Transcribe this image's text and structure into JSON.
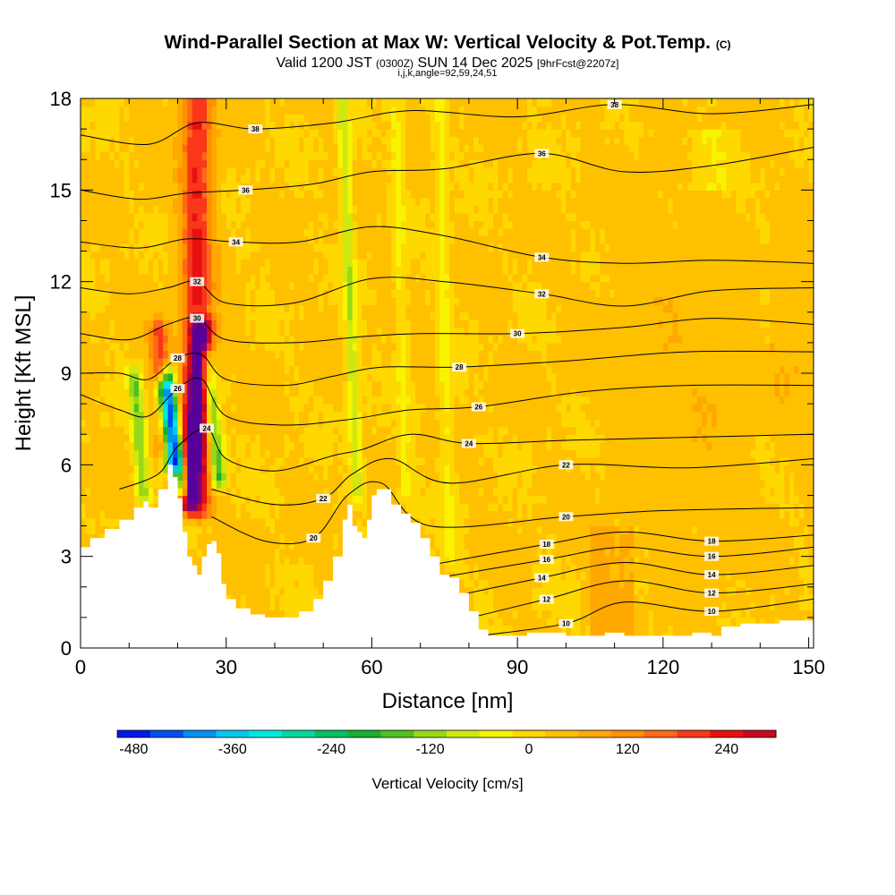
{
  "chart_data": {
    "type": "heatmap",
    "title": "Wind-Parallel Section at Max W: Vertical Velocity & Pot.Temp.",
    "title_suffix": "(C)",
    "subtitle_prefix": "Valid 1200 JST",
    "subtitle_utc": "(0300Z)",
    "subtitle_date": "SUN 14 Dec 2025",
    "subtitle_fcst": "[9hrFcst@2207z]",
    "subtitle2": "i,j,k,angle=92,59,24,51",
    "xlabel": "Distance [nm]",
    "ylabel": "Height [Kft MSL]",
    "xlim": [
      0,
      151
    ],
    "ylim": [
      0,
      18
    ],
    "xticks": [
      0,
      30,
      60,
      90,
      120,
      150
    ],
    "yticks": [
      0,
      3,
      6,
      9,
      12,
      15,
      18
    ],
    "colorbar": {
      "label": "Vertical Velocity [cm/s]",
      "min": -500,
      "max": 300,
      "step": 40,
      "ticks": [
        -480,
        -360,
        -240,
        -120,
        0,
        120,
        240
      ],
      "colors": [
        "#0018e8",
        "#0050f0",
        "#0090f0",
        "#00c8f0",
        "#00e8e0",
        "#00d8a0",
        "#00c060",
        "#18b030",
        "#50c020",
        "#98d818",
        "#d0e810",
        "#f8f400",
        "#ffd800",
        "#ffc000",
        "#ffa800",
        "#ff9000",
        "#ff6818",
        "#f83818",
        "#e81010",
        "#c80820",
        "#a00040",
        "#80007a",
        "#58009a"
      ]
    },
    "terrain_kft": [
      [
        0,
        3.3
      ],
      [
        2,
        3.6
      ],
      [
        5,
        3.9
      ],
      [
        8,
        4.2
      ],
      [
        11,
        4.6
      ],
      [
        13,
        4.8
      ],
      [
        14,
        4.6
      ],
      [
        16,
        5.2
      ],
      [
        18,
        6.0
      ],
      [
        19,
        5.6
      ],
      [
        20,
        4.9
      ],
      [
        21,
        3.8
      ],
      [
        22,
        3.0
      ],
      [
        23,
        2.7
      ],
      [
        24,
        2.4
      ],
      [
        25,
        3.0
      ],
      [
        26,
        3.4
      ],
      [
        27,
        3.5
      ],
      [
        28,
        3.1
      ],
      [
        29,
        2.1
      ],
      [
        30,
        1.6
      ],
      [
        32,
        1.3
      ],
      [
        35,
        1.1
      ],
      [
        38,
        1.0
      ],
      [
        42,
        1.0
      ],
      [
        45,
        1.2
      ],
      [
        48,
        1.6
      ],
      [
        50,
        2.2
      ],
      [
        52,
        3.0
      ],
      [
        54,
        4.2
      ],
      [
        55,
        4.7
      ],
      [
        56,
        4.0
      ],
      [
        57,
        3.8
      ],
      [
        58,
        3.6
      ],
      [
        59,
        4.2
      ],
      [
        60,
        5.0
      ],
      [
        61,
        5.2
      ],
      [
        62,
        5.2
      ],
      [
        64,
        4.7
      ],
      [
        66,
        4.4
      ],
      [
        68,
        4.1
      ],
      [
        70,
        3.6
      ],
      [
        72,
        3.0
      ],
      [
        74,
        2.4
      ],
      [
        76,
        2.3
      ],
      [
        78,
        1.8
      ],
      [
        80,
        1.2
      ],
      [
        82,
        0.6
      ],
      [
        84,
        0.4
      ],
      [
        88,
        0.4
      ],
      [
        92,
        0.5
      ],
      [
        96,
        0.5
      ],
      [
        100,
        0.4
      ],
      [
        104,
        0.4
      ],
      [
        108,
        0.5
      ],
      [
        110,
        0.5
      ],
      [
        112,
        0.4
      ],
      [
        120,
        0.4
      ],
      [
        126,
        0.5
      ],
      [
        130,
        0.4
      ],
      [
        132,
        0.7
      ],
      [
        136,
        0.8
      ],
      [
        140,
        0.8
      ],
      [
        144,
        0.9
      ],
      [
        148,
        0.9
      ],
      [
        151,
        1.0
      ]
    ],
    "updrafts": [
      {
        "x0": 24.0,
        "x1": 24.0,
        "z0": 4.5,
        "z1": 18,
        "width": 3.2,
        "value": 200
      },
      {
        "x0": 22.5,
        "x1": 25.0,
        "z0": 4.8,
        "z1": 10.5,
        "width": 2.2,
        "value": 270
      },
      {
        "x0": 17.5,
        "x1": 16.0,
        "z0": 6.5,
        "z1": 10.5,
        "width": 2.0,
        "value": 160
      }
    ],
    "downdrafts": [
      {
        "x0": 19.0,
        "x1": 17.0,
        "z0": 6.0,
        "z1": 8.5,
        "width": 1.6,
        "value": -420
      },
      {
        "x0": 21.0,
        "x1": 18.0,
        "z0": 5.2,
        "z1": 9.0,
        "width": 1.3,
        "value": -300
      },
      {
        "x0": 28.5,
        "x1": 26.0,
        "z0": 5.5,
        "z1": 9.5,
        "width": 1.5,
        "value": -240
      },
      {
        "x0": 13.0,
        "x1": 11.0,
        "z0": 5.0,
        "z1": 9.0,
        "width": 1.4,
        "value": -160
      },
      {
        "x0": 57.0,
        "x1": 54.0,
        "z0": 5.0,
        "z1": 18.0,
        "width": 1.2,
        "value": -120
      },
      {
        "x0": 67.0,
        "x1": 65.0,
        "z0": 5.0,
        "z1": 18.0,
        "width": 1.2,
        "value": -60
      },
      {
        "x0": 76.0,
        "x1": 74.0,
        "z0": 3.0,
        "z1": 18.0,
        "width": 1.3,
        "value": -60
      }
    ],
    "isentropes": [
      {
        "value": "10",
        "pts": [
          [
            82,
            0.4
          ],
          [
            100,
            0.8
          ],
          [
            112,
            1.5
          ],
          [
            130,
            1.2
          ],
          [
            151,
            1.6
          ]
        ]
      },
      {
        "value": "12",
        "pts": [
          [
            78,
            0.9
          ],
          [
            96,
            1.6
          ],
          [
            112,
            2.2
          ],
          [
            130,
            1.8
          ],
          [
            151,
            2.1
          ]
        ]
      },
      {
        "value": "14",
        "pts": [
          [
            74,
            1.6
          ],
          [
            95,
            2.3
          ],
          [
            112,
            2.8
          ],
          [
            130,
            2.4
          ],
          [
            151,
            2.7
          ]
        ]
      },
      {
        "value": "16",
        "pts": [
          [
            70,
            2.2
          ],
          [
            96,
            2.9
          ],
          [
            112,
            3.3
          ],
          [
            130,
            3.0
          ],
          [
            151,
            3.3
          ]
        ]
      },
      {
        "value": "18",
        "pts": [
          [
            68,
            2.6
          ],
          [
            96,
            3.4
          ],
          [
            112,
            3.8
          ],
          [
            130,
            3.5
          ],
          [
            151,
            3.7
          ]
        ]
      },
      {
        "value": "20",
        "pts": [
          [
            27,
            4.3
          ],
          [
            38,
            3.5
          ],
          [
            48,
            3.6
          ],
          [
            55,
            5.0
          ],
          [
            62,
            5.4
          ],
          [
            72,
            4.0
          ],
          [
            100,
            4.3
          ],
          [
            120,
            4.5
          ],
          [
            151,
            4.6
          ]
        ]
      },
      {
        "value": "22",
        "pts": [
          [
            27,
            5.2
          ],
          [
            40,
            4.7
          ],
          [
            50,
            4.9
          ],
          [
            56,
            5.7
          ],
          [
            64,
            6.2
          ],
          [
            76,
            5.4
          ],
          [
            100,
            6.0
          ],
          [
            125,
            5.9
          ],
          [
            151,
            6.2
          ]
        ]
      },
      {
        "value": "24",
        "pts": [
          [
            8,
            5.2
          ],
          [
            16,
            5.7
          ],
          [
            20,
            6.6
          ],
          [
            26,
            7.2
          ],
          [
            30,
            6.2
          ],
          [
            40,
            5.8
          ],
          [
            52,
            6.3
          ],
          [
            58,
            6.5
          ],
          [
            68,
            7.0
          ],
          [
            80,
            6.7
          ],
          [
            100,
            6.8
          ],
          [
            125,
            6.9
          ],
          [
            151,
            7.0
          ]
        ]
      },
      {
        "value": "26",
        "pts": [
          [
            0,
            8.3
          ],
          [
            8,
            7.8
          ],
          [
            14,
            7.6
          ],
          [
            20,
            8.5
          ],
          [
            25,
            8.8
          ],
          [
            30,
            7.6
          ],
          [
            42,
            7.3
          ],
          [
            56,
            7.5
          ],
          [
            68,
            7.8
          ],
          [
            82,
            7.9
          ],
          [
            104,
            8.4
          ],
          [
            125,
            8.6
          ],
          [
            151,
            8.6
          ]
        ]
      },
      {
        "value": "28",
        "pts": [
          [
            0,
            9.0
          ],
          [
            8,
            9.0
          ],
          [
            14,
            8.8
          ],
          [
            20,
            9.5
          ],
          [
            25,
            9.6
          ],
          [
            30,
            8.8
          ],
          [
            42,
            8.6
          ],
          [
            52,
            8.9
          ],
          [
            62,
            9.2
          ],
          [
            78,
            9.2
          ],
          [
            100,
            9.4
          ],
          [
            125,
            9.7
          ],
          [
            151,
            9.7
          ]
        ]
      },
      {
        "value": "30",
        "pts": [
          [
            0,
            10.3
          ],
          [
            10,
            10.1
          ],
          [
            18,
            10.6
          ],
          [
            24,
            10.8
          ],
          [
            30,
            10.1
          ],
          [
            44,
            10.0
          ],
          [
            58,
            10.2
          ],
          [
            70,
            10.3
          ],
          [
            90,
            10.3
          ],
          [
            112,
            10.5
          ],
          [
            130,
            10.8
          ],
          [
            151,
            10.6
          ]
        ]
      },
      {
        "value": "32",
        "pts": [
          [
            0,
            11.8
          ],
          [
            10,
            11.6
          ],
          [
            18,
            11.8
          ],
          [
            24,
            12.0
          ],
          [
            30,
            11.3
          ],
          [
            44,
            11.3
          ],
          [
            60,
            12.1
          ],
          [
            75,
            12.0
          ],
          [
            95,
            11.6
          ],
          [
            112,
            11.2
          ],
          [
            130,
            11.7
          ],
          [
            151,
            11.8
          ]
        ]
      },
      {
        "value": "34",
        "pts": [
          [
            0,
            13.3
          ],
          [
            12,
            13.1
          ],
          [
            22,
            13.4
          ],
          [
            32,
            13.3
          ],
          [
            45,
            13.3
          ],
          [
            60,
            13.8
          ],
          [
            75,
            13.5
          ],
          [
            95,
            12.8
          ],
          [
            112,
            12.6
          ],
          [
            130,
            12.7
          ],
          [
            151,
            12.6
          ]
        ]
      },
      {
        "value": "36",
        "pts": [
          [
            0,
            15.0
          ],
          [
            12,
            14.7
          ],
          [
            22,
            14.9
          ],
          [
            34,
            15.0
          ],
          [
            48,
            15.2
          ],
          [
            60,
            15.6
          ],
          [
            75,
            15.7
          ],
          [
            95,
            16.2
          ],
          [
            112,
            15.6
          ],
          [
            130,
            15.8
          ],
          [
            151,
            16.4
          ]
        ]
      },
      {
        "value": "38",
        "pts": [
          [
            0,
            16.8
          ],
          [
            14,
            16.5
          ],
          [
            24,
            17.2
          ],
          [
            36,
            17.0
          ],
          [
            52,
            17.2
          ],
          [
            68,
            17.6
          ],
          [
            90,
            17.4
          ],
          [
            110,
            17.8
          ],
          [
            130,
            17.5
          ],
          [
            151,
            17.8
          ]
        ]
      }
    ]
  }
}
